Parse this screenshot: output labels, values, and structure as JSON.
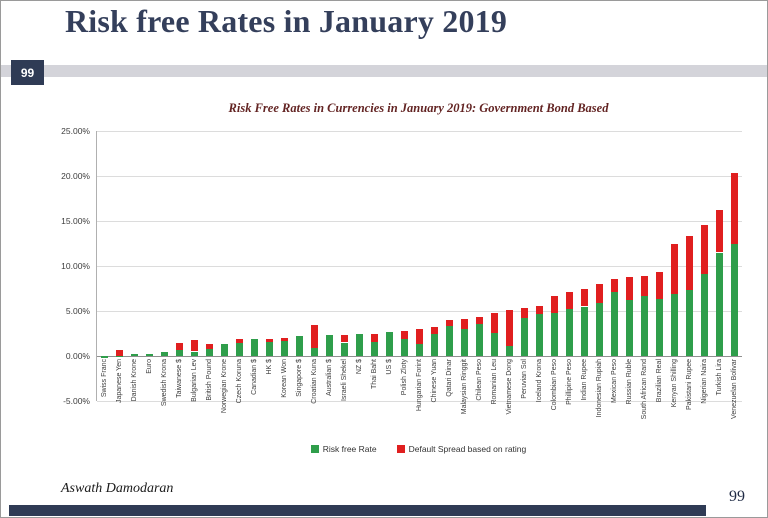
{
  "slide": {
    "title": "Risk free Rates in January 2019",
    "slide_number": "99",
    "footer": {
      "author": "Aswath Damodaran",
      "page_number": "99"
    }
  },
  "colors": {
    "accent_navy": "#2f3b55",
    "band_gray": "#d4d4da",
    "bar_green": "#2f9e4b",
    "bar_red": "#e01f1f",
    "chart_title_maroon": "#632423"
  },
  "chart_data": {
    "type": "bar",
    "stacked": true,
    "title": "Risk Free Rates in Currencies in January 2019: Government Bond Based",
    "xlabel": "",
    "ylabel": "",
    "ylim": [
      -5,
      25
    ],
    "yticks": [
      25,
      20,
      15,
      10,
      5,
      0,
      -5
    ],
    "ytick_labels": [
      "25.00%",
      "20.00%",
      "15.00%",
      "10.00%",
      "5.00%",
      "0.00%",
      "-5.00%"
    ],
    "grid": true,
    "legend_position": "bottom",
    "categories": [
      "Swiss Franc",
      "Japanese Yen",
      "Danish Krone",
      "Euro",
      "Swedish Krona",
      "Taiwanese $",
      "Bulgarian Lev",
      "British Pound",
      "Norwegian Krone",
      "Czech Koruna",
      "Canadian $",
      "HK $",
      "Korean Won",
      "Singapore $",
      "Croatian Kuna",
      "Australian $",
      "Israeli Shekel",
      "NZ $",
      "Thai Baht",
      "US $",
      "Polish Zloty",
      "Hungarian Forint",
      "Chinese Yuan",
      "Qatari Dinar",
      "Malaysian Ringgit",
      "Chilean Peso",
      "Romanian Leu",
      "Vietnamese Dong",
      "Peruvian Sol",
      "Iceland Krona",
      "Colombian Peso",
      "Phillipine Peso",
      "Indian Rupee",
      "Indonesian Rupiah",
      "Mexican Peso",
      "Russian Ruble",
      "South African Rand",
      "Brazilian Real",
      "Kenyan Shilling",
      "Pakistani Rupee",
      "Nigerian Naira",
      "Turkish Lira",
      "Venezuelan Bolivar"
    ],
    "series": [
      {
        "name": "Risk free Rate",
        "color": "#2f9e4b",
        "values": [
          -0.2,
          0.05,
          0.2,
          0.2,
          0.5,
          0.7,
          0.5,
          0.8,
          1.3,
          1.4,
          1.9,
          1.6,
          1.7,
          2.2,
          0.9,
          2.3,
          1.5,
          2.4,
          1.6,
          2.7,
          1.9,
          1.3,
          2.4,
          3.3,
          3.0,
          3.6,
          2.6,
          1.1,
          4.2,
          4.7,
          4.8,
          5.2,
          5.5,
          5.9,
          7.1,
          6.2,
          6.7,
          6.3,
          6.9,
          7.3,
          9.1,
          11.5,
          12.4
        ]
      },
      {
        "name": "Default Spread based on rating",
        "color": "#e01f1f",
        "values": [
          0,
          0.65,
          0,
          0,
          0,
          0.8,
          1.3,
          0.5,
          0,
          0.5,
          0,
          0.3,
          0.3,
          0,
          2.5,
          0,
          0.8,
          0,
          0.9,
          0,
          0.9,
          1.7,
          0.8,
          0.7,
          1.1,
          0.7,
          2.2,
          4.0,
          1.1,
          0.9,
          1.9,
          1.9,
          1.9,
          2.1,
          1.5,
          2.6,
          2.2,
          3.0,
          5.5,
          6.0,
          5.5,
          4.7,
          7.9
        ]
      }
    ]
  }
}
